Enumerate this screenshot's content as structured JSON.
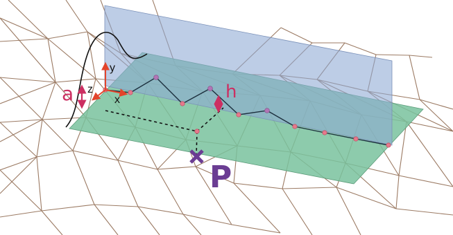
{
  "labels": {
    "a": "a",
    "h": "h",
    "p": "P",
    "x": "x",
    "y": "y",
    "z": "z"
  },
  "colors": {
    "mesh": "#9b7a63",
    "green_plane": "#79c29d",
    "blue_plane": "#8ea8d4",
    "profile": "#111111",
    "pink_label": "#cc2f62",
    "purple_label": "#6b3d93",
    "axis_red": "#e3442b",
    "vertex_pink": "#e6798c",
    "vertex_purple": "#b275b6"
  },
  "icons": {
    "projection_mark": "cross-icon",
    "vertex_mark": "dot-icon"
  }
}
